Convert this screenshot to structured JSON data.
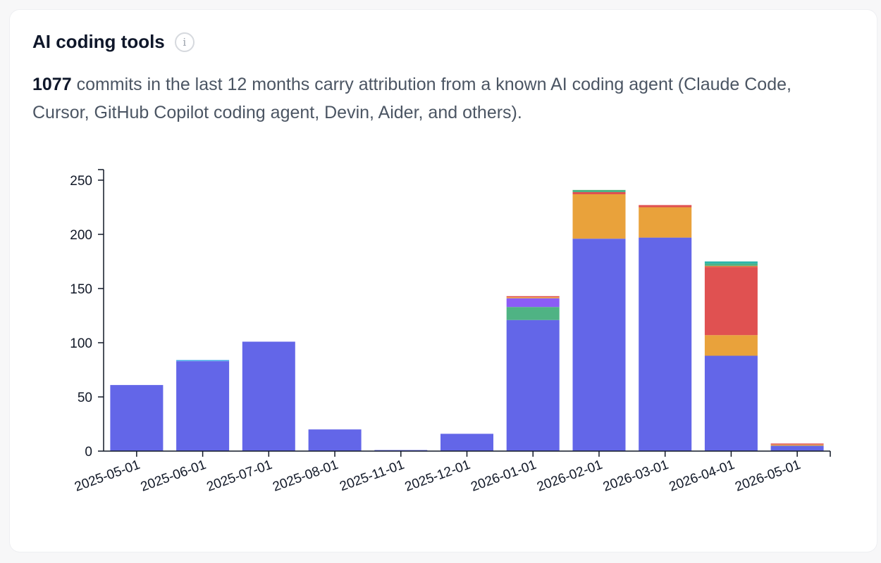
{
  "header": {
    "title": "AI coding tools",
    "info_icon": "info-icon"
  },
  "description": {
    "count": "1077",
    "text": " commits in the last 12 months carry attribution from a known AI coding agent (Claude Code, Cursor, GitHub Copilot coding agent, Devin, Aider, and others)."
  },
  "chart_data": {
    "type": "bar",
    "stacked": true,
    "categories": [
      "2025-05-01",
      "2025-06-01",
      "2025-07-01",
      "2025-08-01",
      "2025-11-01",
      "2025-12-01",
      "2026-01-01",
      "2026-02-01",
      "2026-03-01",
      "2026-04-01",
      "2026-05-01"
    ],
    "ylim": [
      0,
      260
    ],
    "yticks": [
      0,
      50,
      100,
      150,
      200,
      250
    ],
    "legend": "none",
    "grid": false,
    "series": [
      {
        "color": "#6366e8",
        "values": [
          61,
          83,
          101,
          20,
          1,
          16,
          121,
          196,
          197,
          88,
          5
        ]
      },
      {
        "color": "#4fb384",
        "values": [
          0,
          0,
          0,
          0,
          0,
          0,
          12,
          0,
          0,
          0,
          0
        ]
      },
      {
        "color": "#8b5cf6",
        "values": [
          0,
          0,
          0,
          0,
          0,
          0,
          8,
          0,
          0,
          0,
          0
        ]
      },
      {
        "color": "#e9a23b",
        "values": [
          0,
          0,
          0,
          0,
          0,
          0,
          1,
          41,
          28,
          19,
          1
        ]
      },
      {
        "color": "#e05151",
        "values": [
          0,
          0,
          0,
          0,
          0,
          0,
          1,
          2,
          2,
          63,
          1
        ]
      },
      {
        "color": "#e07b39",
        "values": [
          0,
          0,
          0,
          0,
          0,
          0,
          0,
          0,
          0,
          1,
          0
        ]
      },
      {
        "color": "#4fb384",
        "values": [
          0,
          0,
          0,
          0,
          0,
          0,
          0,
          2,
          0,
          2,
          0
        ]
      },
      {
        "color": "#2bb5a8",
        "values": [
          0,
          0,
          0,
          0,
          0,
          0,
          0,
          0,
          0,
          2,
          0
        ]
      },
      {
        "color": "#3fa8e8",
        "values": [
          0,
          1,
          0,
          0,
          0,
          0,
          0,
          0,
          0,
          0,
          0
        ]
      }
    ]
  }
}
